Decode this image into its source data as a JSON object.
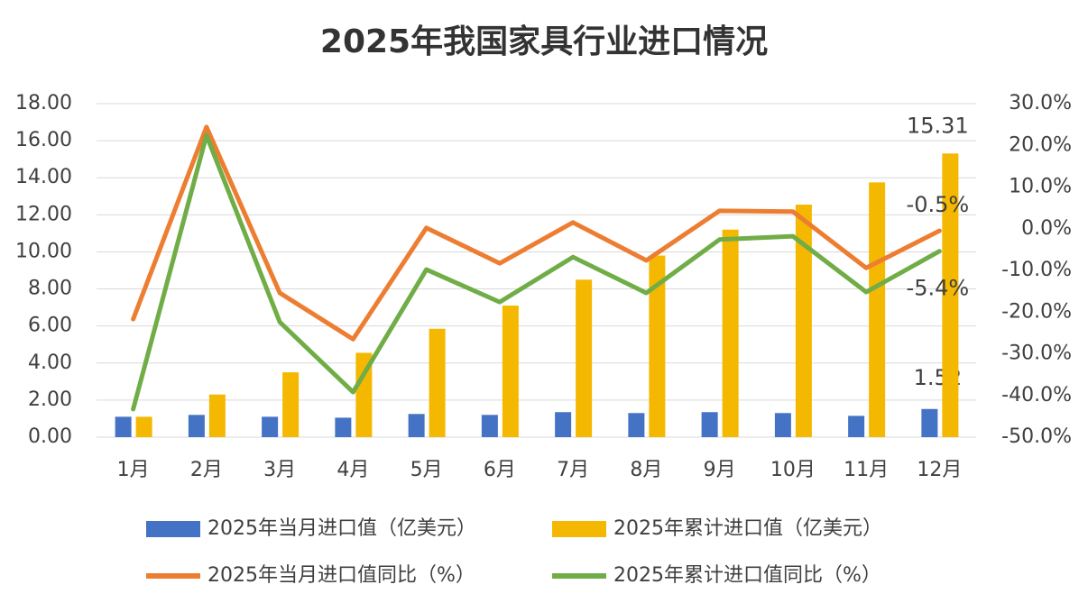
{
  "chart_data": {
    "type": "bar-line",
    "title": "2025年我国家具行业进口情况",
    "categories": [
      "1月",
      "2月",
      "3月",
      "4月",
      "5月",
      "6月",
      "7月",
      "8月",
      "9月",
      "10月",
      "11月",
      "12月"
    ],
    "series": [
      {
        "name": "2025年当月进口值（亿美元）",
        "type": "bar",
        "color": "#4472c4",
        "values": [
          1.1,
          1.2,
          1.1,
          1.05,
          1.25,
          1.2,
          1.35,
          1.3,
          1.35,
          1.3,
          1.15,
          1.52
        ],
        "value_labels": [
          null,
          null,
          null,
          null,
          null,
          null,
          null,
          null,
          null,
          null,
          null,
          "1.52"
        ]
      },
      {
        "name": "2025年累计进口值（亿美元）",
        "type": "bar",
        "color": "#f5b800",
        "values": [
          1.1,
          2.3,
          3.5,
          4.55,
          5.85,
          7.1,
          8.5,
          9.8,
          11.2,
          12.55,
          13.75,
          15.31
        ],
        "value_labels": [
          null,
          null,
          null,
          null,
          null,
          null,
          null,
          null,
          null,
          null,
          null,
          "15.31"
        ]
      },
      {
        "name": "2025年当月进口值同比（%）",
        "type": "line",
        "axis": "y2",
        "color": "#ed7d31",
        "values": [
          -21.7,
          24.4,
          -15.4,
          -26.5,
          0.2,
          -8.3,
          1.5,
          -7.6,
          4.3,
          4.1,
          -9.4,
          -0.5
        ],
        "value_labels": [
          null,
          null,
          null,
          null,
          null,
          null,
          null,
          null,
          null,
          null,
          null,
          "-0.5%"
        ]
      },
      {
        "name": "2025年累计进口值同比（%）",
        "type": "line",
        "axis": "y2",
        "color": "#70ad47",
        "values": [
          -43.3,
          22.4,
          -22.4,
          -39.2,
          -9.8,
          -17.6,
          -6.8,
          -15.4,
          -2.6,
          -1.8,
          -15.2,
          -5.4
        ],
        "value_labels": [
          null,
          null,
          null,
          null,
          null,
          null,
          null,
          null,
          null,
          null,
          null,
          "-5.4%"
        ]
      }
    ],
    "ylim": [
      0,
      18
    ],
    "yticks": [
      {
        "value": 0,
        "label": "0.00"
      },
      {
        "value": 2,
        "label": "2.00"
      },
      {
        "value": 4,
        "label": "4.00"
      },
      {
        "value": 6,
        "label": "6.00"
      },
      {
        "value": 8,
        "label": "8.00"
      },
      {
        "value": 10,
        "label": "10.00"
      },
      {
        "value": 12,
        "label": "12.00"
      },
      {
        "value": 14,
        "label": "14.00"
      },
      {
        "value": 16,
        "label": "16.00"
      },
      {
        "value": 18,
        "label": "18.00"
      }
    ],
    "y2lim": [
      -50,
      30
    ],
    "y2ticks": [
      {
        "value": -50,
        "label": "-50.0%"
      },
      {
        "value": -40,
        "label": "-40.0%"
      },
      {
        "value": -30,
        "label": "-30.0%"
      },
      {
        "value": -20,
        "label": "-20.0%"
      },
      {
        "value": -10,
        "label": "-10.0%"
      },
      {
        "value": 0,
        "label": "0.0%"
      },
      {
        "value": 10,
        "label": "10.0%"
      },
      {
        "value": 20,
        "label": "20.0%"
      },
      {
        "value": 30,
        "label": "30.0%"
      }
    ],
    "grid": true,
    "legend": "bottom"
  }
}
